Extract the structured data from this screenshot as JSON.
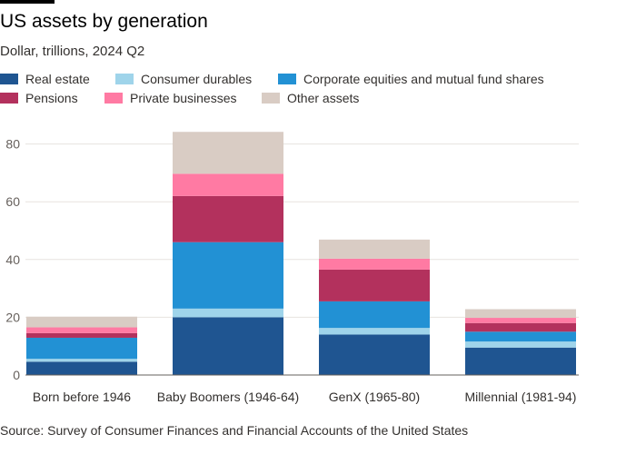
{
  "title": "US assets by generation",
  "subtitle": "Dollar, trillions, 2024 Q2",
  "source": "Source: Survey of Consumer Finances and Financial Accounts of the United States",
  "colors": {
    "real_estate": "#1f5591",
    "consumer_durables": "#9fd4ea",
    "equities": "#2291d4",
    "pensions": "#b3315d",
    "private_businesses": "#ff7aa3",
    "other_assets": "#d9ccc4"
  },
  "legend": [
    {
      "label": "Real estate",
      "color": "#1f5591"
    },
    {
      "label": "Consumer durables",
      "color": "#9fd4ea"
    },
    {
      "label": "Corporate equities and mutual fund shares",
      "color": "#2291d4"
    },
    {
      "label": "Pensions",
      "color": "#b3315d"
    },
    {
      "label": "Private businesses",
      "color": "#ff7aa3"
    },
    {
      "label": "Other assets",
      "color": "#d9ccc4"
    }
  ],
  "chart_data": {
    "type": "bar",
    "stacked": true,
    "title": "US assets by generation",
    "subtitle": "Dollar, trillions, 2024 Q2",
    "categories": [
      "Born before 1946",
      "Baby Boomers (1946-64)",
      "GenX (1965-80)",
      "Millennial (1981-94)"
    ],
    "series": [
      {
        "name": "Real estate",
        "color": "#1f5591",
        "values": [
          4.6,
          20.0,
          14.0,
          9.5
        ]
      },
      {
        "name": "Consumer durables",
        "color": "#9fd4ea",
        "values": [
          1.0,
          3.0,
          2.3,
          2.1
        ]
      },
      {
        "name": "Corporate equities and mutual fund shares",
        "color": "#2291d4",
        "values": [
          7.3,
          23.0,
          9.2,
          3.4
        ]
      },
      {
        "name": "Pensions",
        "color": "#b3315d",
        "values": [
          1.6,
          16.0,
          11.0,
          3.0
        ]
      },
      {
        "name": "Private businesses",
        "color": "#ff7aa3",
        "values": [
          2.0,
          7.7,
          3.8,
          1.8
        ]
      },
      {
        "name": "Other assets",
        "color": "#d9ccc4",
        "values": [
          3.7,
          14.5,
          6.6,
          3.0
        ]
      }
    ],
    "yticks": [
      0,
      20,
      40,
      60,
      80
    ],
    "ylim": [
      0,
      85
    ],
    "grid": true,
    "legend_position": "top"
  }
}
